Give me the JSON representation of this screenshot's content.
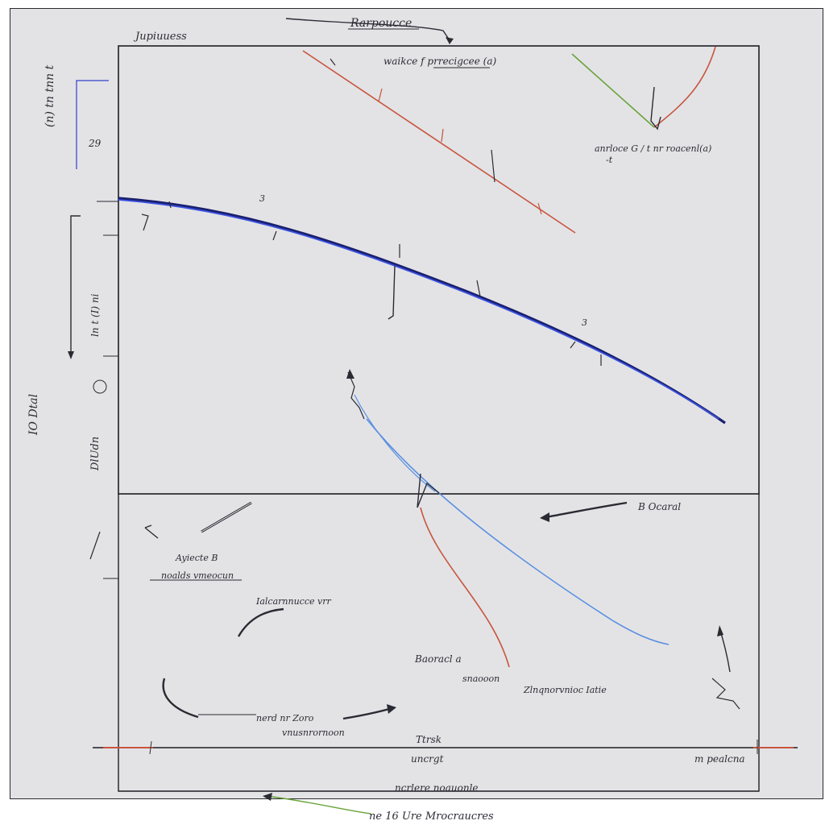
{
  "labels": {
    "top_title": "Rarpoucce",
    "top_left": "Jupiuuess",
    "upper_center": "waikce f prrecigcee (a)",
    "right_annotation": "anrloce G / t  nr roacenl(a)",
    "right_annotation_sub": "-t",
    "left_vertical_top": "(n) tn tnn t",
    "left_tick_29": "29",
    "left_mid_label": "ln t (I) ni",
    "left_outer": "IO Dtal",
    "left_lower": "DlUdn",
    "point_3_a": "3",
    "point_3_b": "3",
    "mid_right_label": "B Ocaral",
    "lower_left_a": "Ayiecte B",
    "lower_left_b": "noalds vmeocun",
    "lower_mid": "Ialcarnnucce vrr",
    "lower_center_a": "Baoracl a",
    "lower_center_b": "snaooon",
    "lower_right": "Zlnqnorvnioc Iatie",
    "bottom_a": "nerd nr Zoro",
    "bottom_b": "vnusnrornoon",
    "bottom_axis_a": "Ttrsk",
    "bottom_axis_b": "uncrgt",
    "bottom_right_axis": "m pealcna",
    "bottom_caption": "ncrlere noauonle",
    "footer_caption": "ne 16 Ure Mrocraucres"
  },
  "colors": {
    "paper": "#e3e3e6",
    "ink": "#2a2a33",
    "blue_curve": "#3340c8",
    "light_blue_curve": "#5a8fe0",
    "red_line": "#c8553d",
    "green_line": "#6aa33a"
  }
}
